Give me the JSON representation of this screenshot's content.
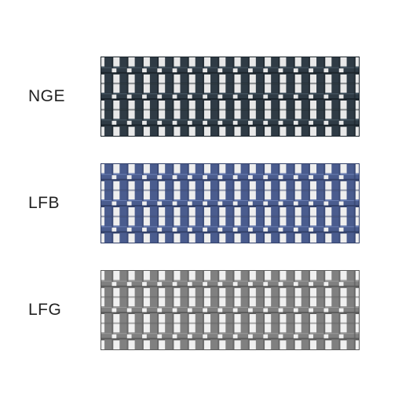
{
  "belts": [
    {
      "label": "NGE",
      "main_color": "#2f3b45",
      "dark_color": "#1c252c",
      "hole_color": "#e8e8e8",
      "accent_color": "#4a5a66"
    },
    {
      "label": "LFB",
      "main_color": "#4a5c8e",
      "dark_color": "#33416a",
      "hole_color": "#eeeeee",
      "accent_color": "#6b7fb3"
    },
    {
      "label": "LFG",
      "main_color": "#808080",
      "dark_color": "#5c5c5c",
      "hole_color": "#f0f0f0",
      "accent_color": "#9a9a9a"
    }
  ],
  "grid": {
    "cols": 17,
    "col_w": 19.4,
    "segment_rows": 3,
    "seg_h": 34
  },
  "label_font_size": 21,
  "label_color": "#222222"
}
